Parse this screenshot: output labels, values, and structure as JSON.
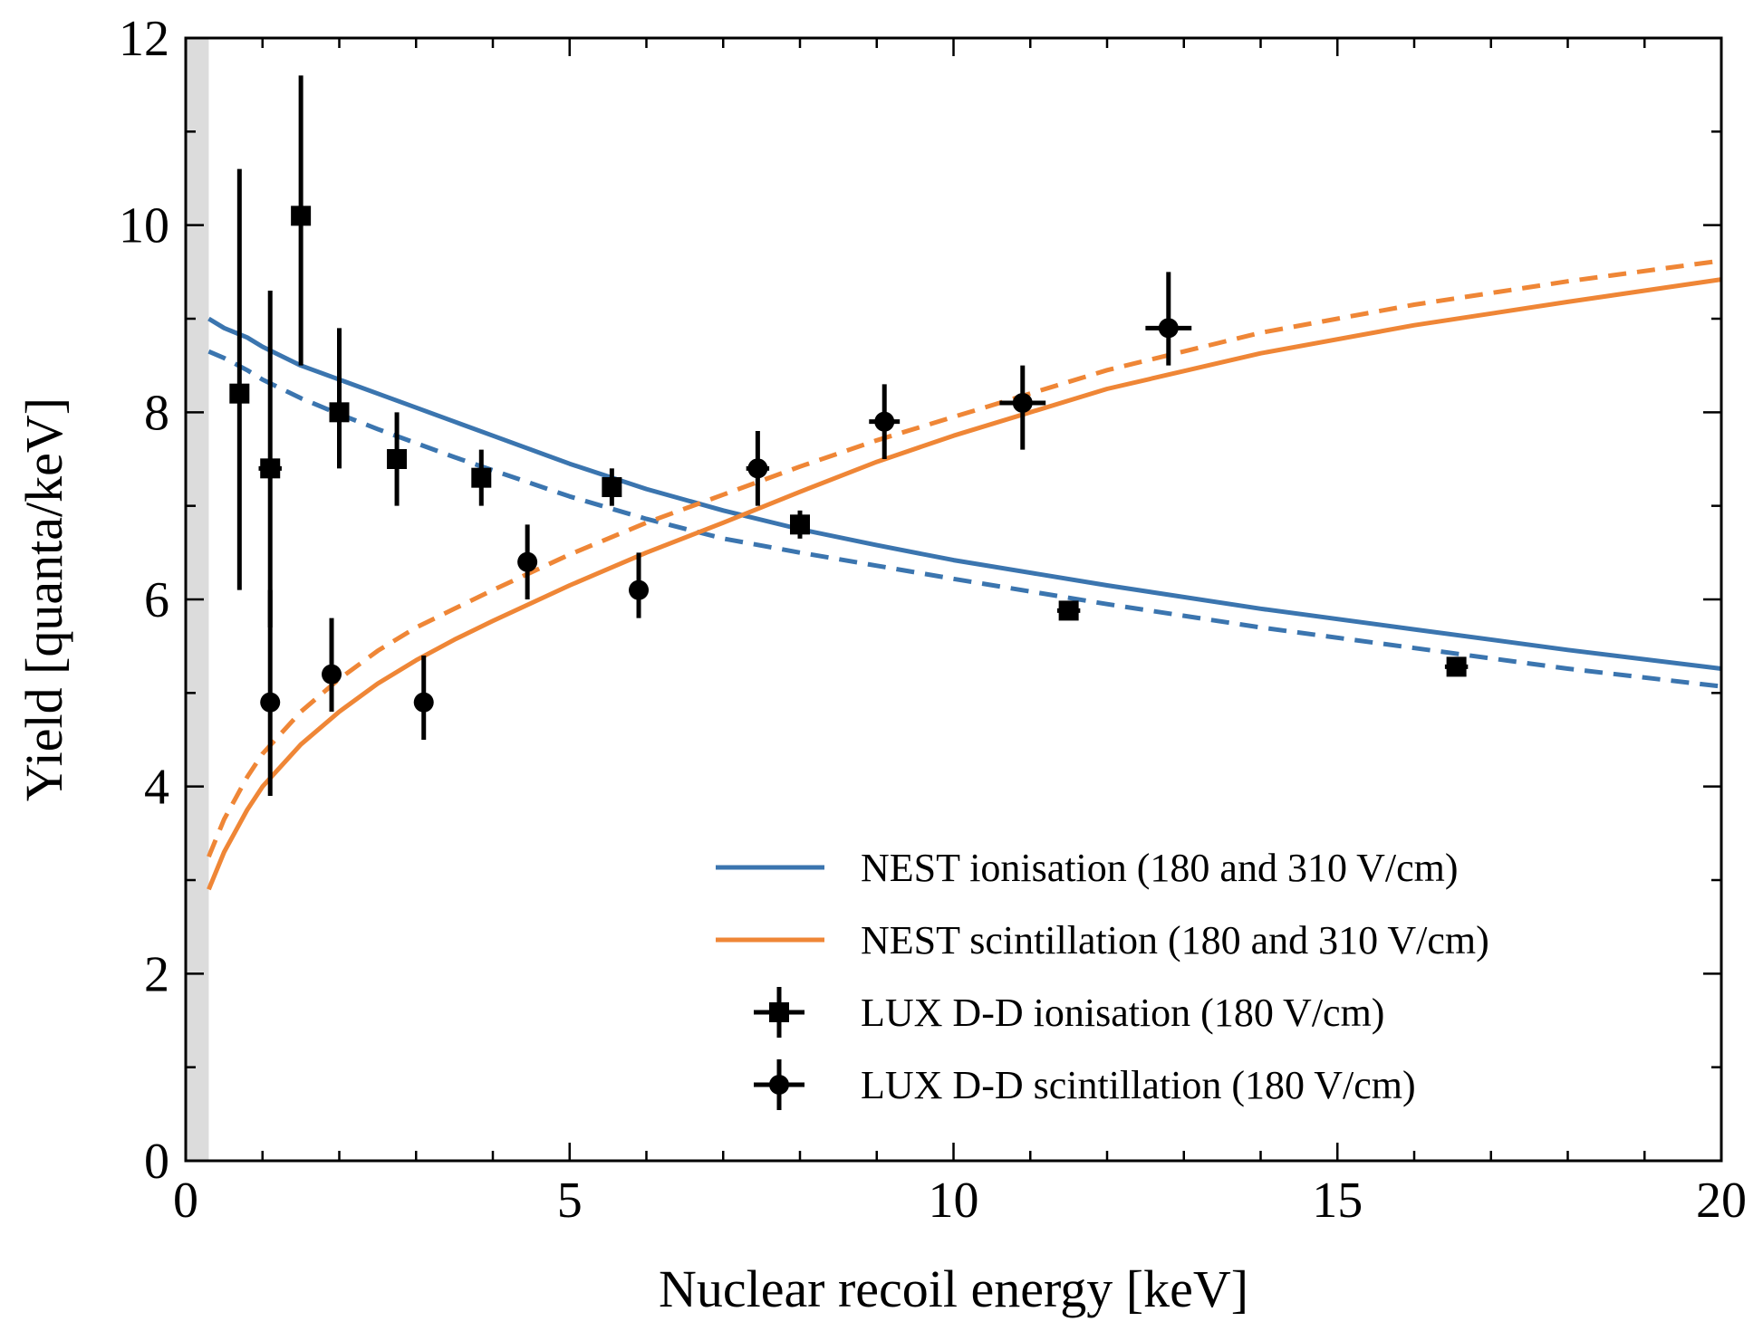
{
  "chart_data": {
    "type": "scatter",
    "xlabel": "Nuclear recoil energy [keV]",
    "ylabel": "Yield [quanta/keV]",
    "xlim": [
      0,
      20
    ],
    "ylim": [
      0,
      12
    ],
    "x_ticks": [
      0,
      5,
      10,
      15,
      20
    ],
    "y_ticks": [
      0,
      2,
      4,
      6,
      8,
      10,
      12
    ],
    "x_tick_labels": [
      "0",
      "5",
      "10",
      "15",
      "20"
    ],
    "y_tick_labels": [
      "0",
      "2",
      "4",
      "6",
      "8",
      "10",
      "12"
    ],
    "x_minor_step": 1,
    "y_minor_step": 1,
    "shaded_region_x": [
      0,
      0.3
    ],
    "grid": false,
    "legend_position": "bottom-right",
    "series": [
      {
        "name": "NEST ionisation (180 and 310 V/cm)",
        "style": "solid",
        "color": "#3b75af",
        "x": [
          0.3,
          0.5,
          0.8,
          1,
          1.5,
          2,
          2.5,
          3,
          3.5,
          4,
          5,
          6,
          7,
          8,
          9,
          10,
          12,
          14,
          16,
          18,
          20
        ],
        "y": [
          9.0,
          8.9,
          8.8,
          8.7,
          8.5,
          8.35,
          8.2,
          8.05,
          7.9,
          7.75,
          7.45,
          7.18,
          6.95,
          6.75,
          6.58,
          6.42,
          6.15,
          5.9,
          5.68,
          5.46,
          5.26
        ]
      },
      {
        "name": "",
        "style": "dashed",
        "color": "#3b75af",
        "x": [
          0.3,
          0.5,
          0.8,
          1,
          1.5,
          2,
          2.5,
          3,
          3.5,
          4,
          5,
          6,
          7,
          8,
          9,
          10,
          12,
          14,
          16,
          18,
          20
        ],
        "y": [
          8.65,
          8.58,
          8.45,
          8.35,
          8.15,
          7.98,
          7.82,
          7.67,
          7.52,
          7.38,
          7.1,
          6.86,
          6.65,
          6.5,
          6.36,
          6.22,
          5.95,
          5.7,
          5.48,
          5.26,
          5.07
        ]
      },
      {
        "name": "NEST scintillation (180 and 310 V/cm)",
        "style": "solid",
        "color": "#ef8636",
        "x": [
          0.3,
          0.5,
          0.8,
          1,
          1.5,
          2,
          2.5,
          3,
          3.5,
          4,
          5,
          6,
          7,
          8,
          9,
          10,
          12,
          14,
          16,
          18,
          20
        ],
        "y": [
          2.9,
          3.3,
          3.75,
          4.0,
          4.45,
          4.8,
          5.1,
          5.35,
          5.57,
          5.77,
          6.15,
          6.5,
          6.82,
          7.15,
          7.47,
          7.75,
          8.25,
          8.63,
          8.93,
          9.18,
          9.42
        ]
      },
      {
        "name": "",
        "style": "dashed",
        "color": "#ef8636",
        "x": [
          0.3,
          0.5,
          0.8,
          1,
          1.5,
          2,
          2.5,
          3,
          3.5,
          4,
          5,
          6,
          7,
          8,
          9,
          10,
          12,
          14,
          16,
          18,
          20
        ],
        "y": [
          3.25,
          3.65,
          4.1,
          4.35,
          4.8,
          5.15,
          5.45,
          5.7,
          5.9,
          6.1,
          6.48,
          6.82,
          7.12,
          7.42,
          7.7,
          7.95,
          8.45,
          8.85,
          9.15,
          9.4,
          9.62
        ]
      },
      {
        "name": "LUX D-D ionisation (180 V/cm)",
        "marker": "square",
        "color": "#000000",
        "points": [
          {
            "x": 0.7,
            "y": 8.2,
            "yerr": [
              2.1,
              2.4
            ],
            "xerr": 0.05
          },
          {
            "x": 1.1,
            "y": 7.4,
            "yerr": [
              1.7,
              1.9
            ],
            "xerr": 0.15
          },
          {
            "x": 1.5,
            "y": 10.1,
            "yerr": [
              1.6,
              1.5
            ],
            "xerr": 0.05
          },
          {
            "x": 2.0,
            "y": 8.0,
            "yerr": [
              0.6,
              0.9
            ],
            "xerr": 0.1
          },
          {
            "x": 2.75,
            "y": 7.5,
            "yerr": [
              0.5,
              0.5
            ],
            "xerr": 0.05
          },
          {
            "x": 3.85,
            "y": 7.3,
            "yerr": [
              0.3,
              0.3
            ],
            "xerr": 0.1
          },
          {
            "x": 5.55,
            "y": 7.2,
            "yerr": [
              0.2,
              0.2
            ],
            "xerr": 0.1
          },
          {
            "x": 8.0,
            "y": 6.8,
            "yerr": [
              0.15,
              0.15
            ],
            "xerr": 0.12
          },
          {
            "x": 11.5,
            "y": 5.88,
            "yerr": [
              0.1,
              0.1
            ],
            "xerr": 0.15
          },
          {
            "x": 16.55,
            "y": 5.28,
            "yerr": [
              0.1,
              0.1
            ],
            "xerr": 0.15
          }
        ]
      },
      {
        "name": "LUX D-D scintillation (180 V/cm)",
        "marker": "circle",
        "color": "#000000",
        "points": [
          {
            "x": 1.1,
            "y": 4.9,
            "yerr": [
              1.0,
              1.2
            ],
            "xerr": 0.05
          },
          {
            "x": 1.9,
            "y": 5.2,
            "yerr": [
              0.4,
              0.6
            ],
            "xerr": 0.05
          },
          {
            "x": 3.1,
            "y": 4.9,
            "yerr": [
              0.4,
              0.5
            ],
            "xerr": 0.05
          },
          {
            "x": 4.45,
            "y": 6.4,
            "yerr": [
              0.4,
              0.4
            ],
            "xerr": 0.1
          },
          {
            "x": 5.9,
            "y": 6.1,
            "yerr": [
              0.3,
              0.4
            ],
            "xerr": 0.05
          },
          {
            "x": 7.45,
            "y": 7.4,
            "yerr": [
              0.4,
              0.4
            ],
            "xerr": 0.15
          },
          {
            "x": 9.1,
            "y": 7.9,
            "yerr": [
              0.4,
              0.4
            ],
            "xerr": 0.2
          },
          {
            "x": 10.9,
            "y": 8.1,
            "yerr": [
              0.5,
              0.4
            ],
            "xerr": 0.3
          },
          {
            "x": 12.8,
            "y": 8.9,
            "yerr": [
              0.4,
              0.6
            ],
            "xerr": 0.3
          }
        ]
      }
    ],
    "legend": [
      {
        "label": "NEST ionisation (180 and 310 V/cm)",
        "kind": "line",
        "color": "#3b75af"
      },
      {
        "label": "NEST scintillation (180 and 310 V/cm)",
        "kind": "line",
        "color": "#ef8636"
      },
      {
        "label": "LUX D-D ionisation (180 V/cm)",
        "kind": "square",
        "color": "#000000"
      },
      {
        "label": "LUX D-D scintillation (180 V/cm)",
        "kind": "circle",
        "color": "#000000"
      }
    ]
  }
}
